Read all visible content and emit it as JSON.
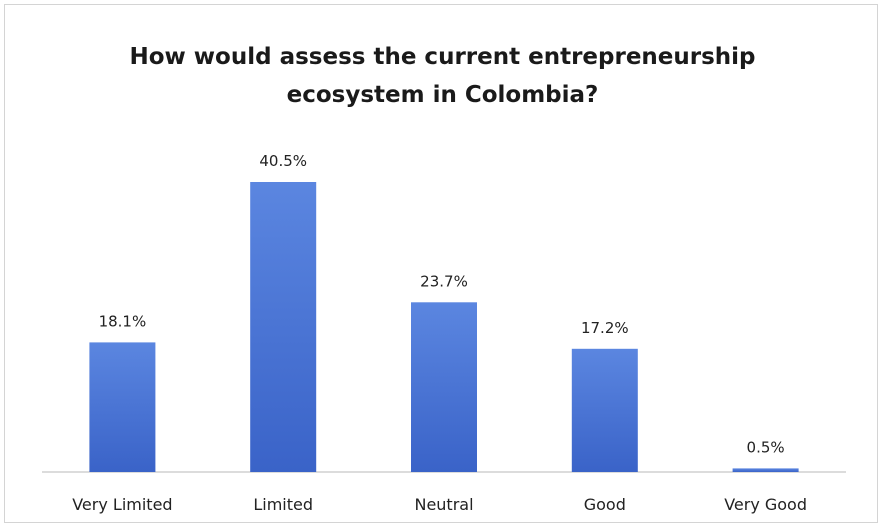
{
  "chart_data": {
    "type": "bar",
    "title_lines": [
      "How would assess the current entrepreneurship",
      "ecosystem in Colombia?"
    ],
    "categories": [
      "Very Limited",
      "Limited",
      "Neutral",
      "Good",
      "Very Good"
    ],
    "values": [
      18.1,
      40.5,
      23.7,
      17.2,
      0.5
    ],
    "data_labels": [
      "18.1%",
      "40.5%",
      "23.7%",
      "17.2%",
      "0.5%"
    ],
    "xlabel": "",
    "ylabel": "",
    "ylim": [
      0,
      40.5
    ],
    "grid": false,
    "legend": "none",
    "bar_color_top": "#5b86e0",
    "bar_color_bottom": "#3a63c8"
  }
}
